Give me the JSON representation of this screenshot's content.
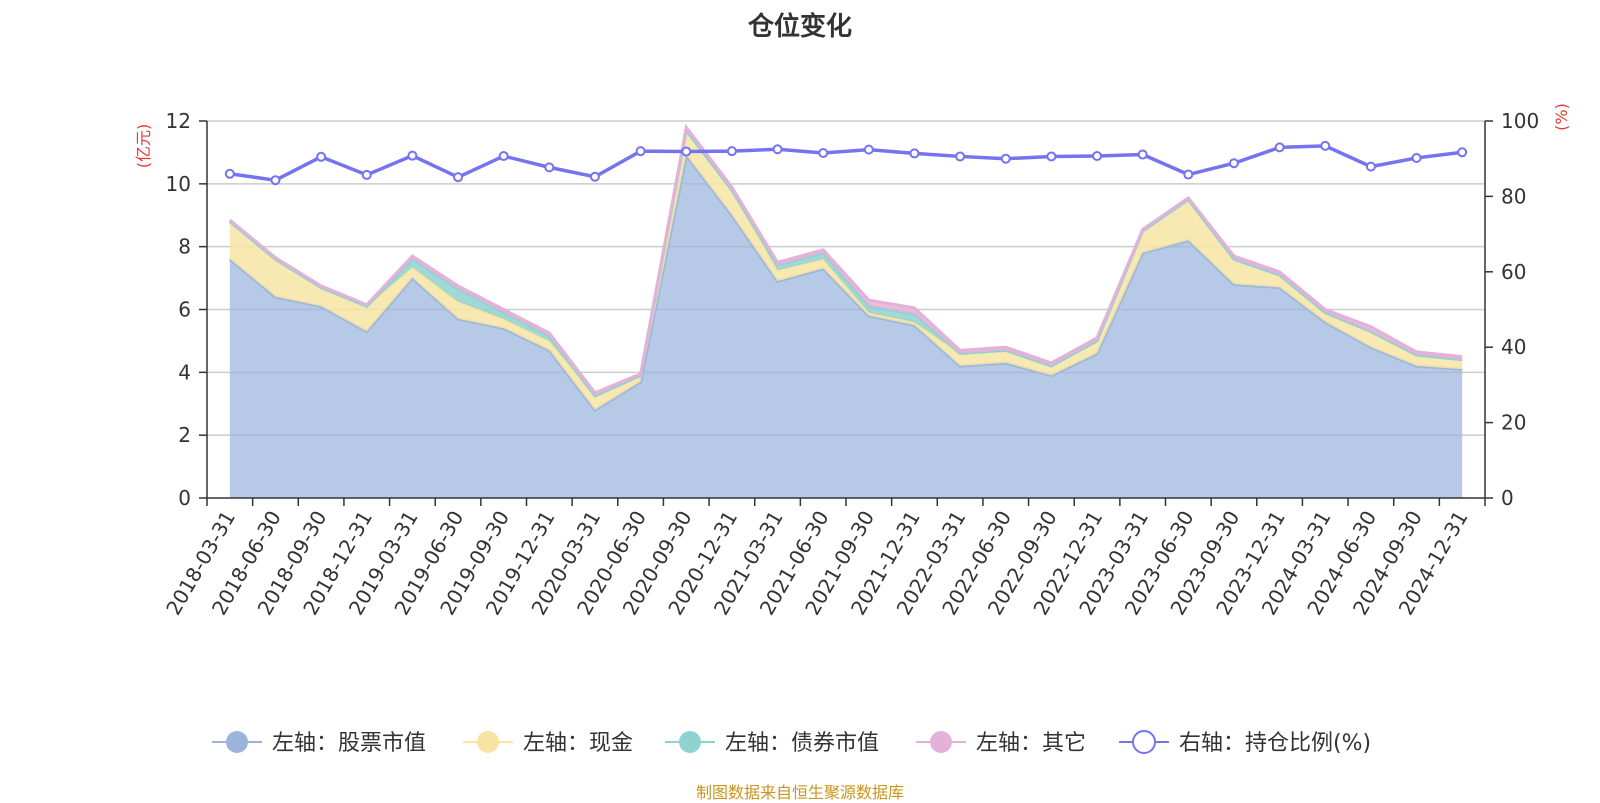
{
  "title": "仓位变化",
  "source_note": "制图数据来自恒生聚源数据库",
  "colors": {
    "stock": "#9ab4dc",
    "cash": "#f7e4a4",
    "bond": "#8fd3d1",
    "other": "#e4b2d8",
    "ratio": "#7474f0"
  },
  "chart_data": {
    "type": "area",
    "title": "仓位变化",
    "left_axis": {
      "unit": "(亿元)",
      "ylim": [
        0,
        12
      ],
      "ticks": [
        0,
        2,
        4,
        6,
        8,
        10,
        12
      ]
    },
    "right_axis": {
      "unit": "(%)",
      "ylim": [
        0,
        100
      ],
      "ticks": [
        0,
        20,
        40,
        60,
        80,
        100
      ]
    },
    "grid": true,
    "legend_position": "bottom",
    "categories": [
      "2018-03-31",
      "2018-06-30",
      "2018-09-30",
      "2018-12-31",
      "2019-03-31",
      "2019-06-30",
      "2019-09-30",
      "2019-12-31",
      "2020-03-31",
      "2020-06-30",
      "2020-09-30",
      "2020-12-31",
      "2021-03-31",
      "2021-06-30",
      "2021-09-30",
      "2021-12-31",
      "2022-03-31",
      "2022-06-30",
      "2022-09-30",
      "2022-12-31",
      "2023-03-31",
      "2023-06-30",
      "2023-09-30",
      "2023-12-31",
      "2024-03-31",
      "2024-06-30",
      "2024-09-30",
      "2024-12-31"
    ],
    "series": [
      {
        "name": "左轴：股票市值",
        "key": "stock",
        "axis": "left",
        "stacked": true,
        "values": [
          7.6,
          6.4,
          6.1,
          5.3,
          7.0,
          5.7,
          5.4,
          4.7,
          2.8,
          3.7,
          10.9,
          9.0,
          6.9,
          7.3,
          5.8,
          5.5,
          4.2,
          4.3,
          3.9,
          4.6,
          7.8,
          8.2,
          6.8,
          6.7,
          5.6,
          4.8,
          4.2,
          4.1
        ]
      },
      {
        "name": "左轴：现金",
        "key": "cash",
        "axis": "left",
        "stacked": true,
        "values": [
          1.2,
          1.2,
          0.6,
          0.8,
          0.35,
          0.55,
          0.3,
          0.3,
          0.45,
          0.2,
          0.8,
          0.8,
          0.35,
          0.3,
          0.1,
          0.1,
          0.4,
          0.4,
          0.3,
          0.4,
          0.7,
          1.3,
          0.8,
          0.4,
          0.3,
          0.5,
          0.35,
          0.3
        ]
      },
      {
        "name": "左轴：债券市值",
        "key": "bond",
        "axis": "left",
        "stacked": true,
        "values": [
          0,
          0,
          0,
          0,
          0.25,
          0.4,
          0.2,
          0.15,
          0,
          0,
          0,
          0,
          0.15,
          0.2,
          0.2,
          0.25,
          0,
          0,
          0,
          0,
          0,
          0,
          0,
          0,
          0,
          0,
          0,
          0
        ]
      },
      {
        "name": "左轴：其它",
        "key": "other",
        "axis": "left",
        "stacked": true,
        "values": [
          0.05,
          0.05,
          0.05,
          0.05,
          0.1,
          0.1,
          0.1,
          0.1,
          0.1,
          0.05,
          0.1,
          0.1,
          0.1,
          0.1,
          0.2,
          0.2,
          0.1,
          0.1,
          0.1,
          0.1,
          0.05,
          0.05,
          0.1,
          0.1,
          0.1,
          0.15,
          0.1,
          0.1
        ]
      },
      {
        "name": "右轴：持仓比例(%)",
        "key": "ratio",
        "axis": "right",
        "stacked": false,
        "values": [
          86.0,
          84.3,
          90.5,
          85.7,
          90.8,
          85.1,
          90.7,
          87.7,
          85.2,
          92.0,
          91.9,
          92.0,
          92.5,
          91.5,
          92.4,
          91.4,
          90.6,
          90.0,
          90.6,
          90.7,
          91.1,
          85.8,
          88.8,
          93.0,
          93.4,
          87.9,
          90.2,
          91.7
        ]
      }
    ]
  }
}
